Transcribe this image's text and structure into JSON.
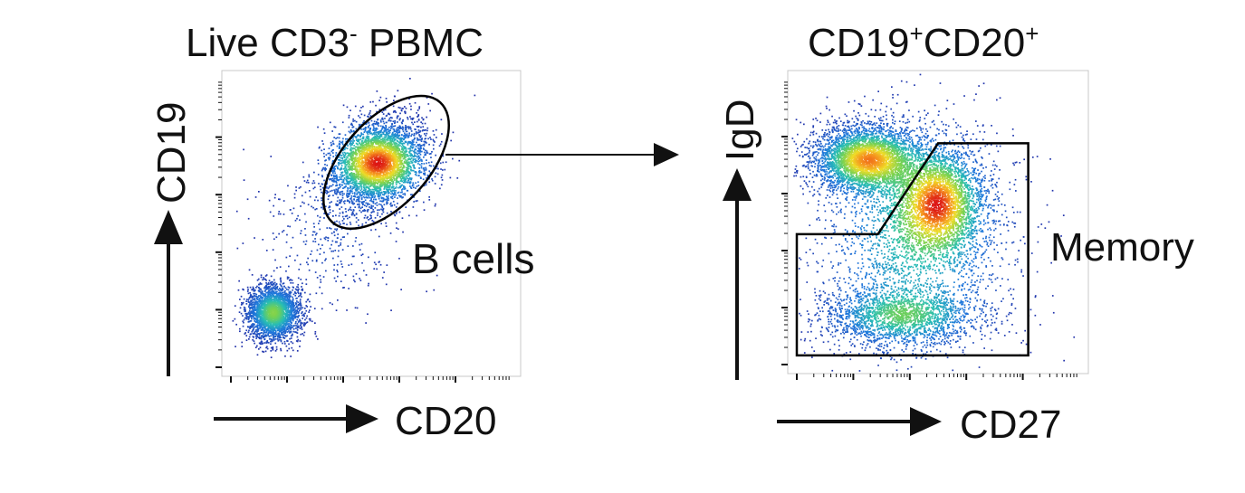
{
  "chart_data": [
    {
      "type": "scatter",
      "title_main": "Live CD3",
      "title_sup": "-",
      "title_rest": " PBMC",
      "xlabel": "CD20",
      "ylabel": "CD19",
      "x_scale": "log",
      "y_scale": "log",
      "xlim": [
        0,
        1
      ],
      "ylim": [
        0,
        1
      ],
      "populations": [
        {
          "cx": 0.17,
          "cy": 0.21,
          "sx": 0.045,
          "sy": 0.045,
          "n": 2600
        },
        {
          "cx": 0.52,
          "cy": 0.7,
          "sx": 0.085,
          "sy": 0.065,
          "rot": 0.62,
          "n": 4200
        },
        {
          "cx": 0.35,
          "cy": 0.45,
          "sx": 0.12,
          "sy": 0.12,
          "n": 350
        }
      ],
      "gates": [
        {
          "label": "B cells",
          "shape": "ellipse",
          "cx": 0.55,
          "cy": 0.7,
          "rx": 0.27,
          "ry": 0.14,
          "rot_deg": -48
        }
      ]
    },
    {
      "type": "scatter",
      "title_a": "CD19",
      "title_a_sup": "+",
      "title_b": "CD20",
      "title_b_sup": "+",
      "xlabel": "CD27",
      "ylabel": "IgD",
      "x_scale": "log",
      "y_scale": "log",
      "xlim": [
        0,
        1
      ],
      "ylim": [
        0,
        1
      ],
      "populations": [
        {
          "cx": 0.26,
          "cy": 0.71,
          "sx": 0.09,
          "sy": 0.055,
          "n": 3800
        },
        {
          "cx": 0.5,
          "cy": 0.57,
          "sx": 0.075,
          "sy": 0.09,
          "n": 3200
        },
        {
          "cx": 0.37,
          "cy": 0.19,
          "sx": 0.13,
          "sy": 0.05,
          "n": 1900
        },
        {
          "cx": 0.42,
          "cy": 0.45,
          "sx": 0.17,
          "sy": 0.2,
          "n": 2200
        }
      ],
      "gates": [
        {
          "label": "Memory",
          "shape": "polygon",
          "points": [
            [
              0.03,
              0.46
            ],
            [
              0.3,
              0.46
            ],
            [
              0.5,
              0.76
            ],
            [
              0.8,
              0.76
            ],
            [
              0.8,
              0.06
            ],
            [
              0.03,
              0.06
            ]
          ]
        }
      ]
    }
  ]
}
